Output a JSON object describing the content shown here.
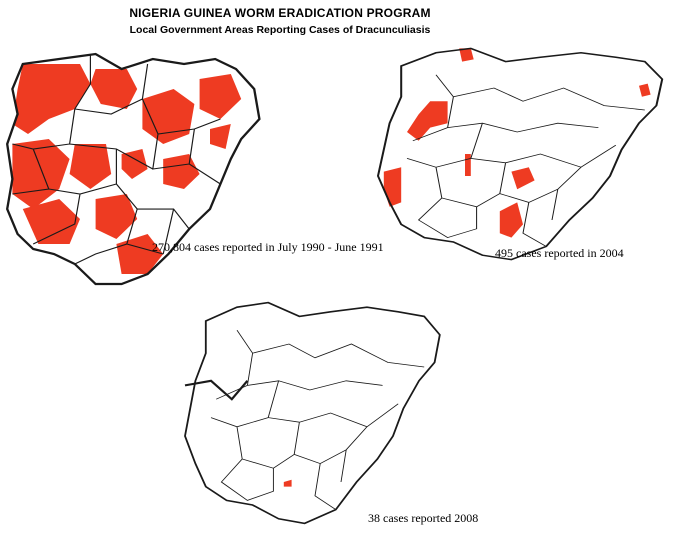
{
  "header": {
    "title": "NIGERIA GUINEA WORM ERADICATION PROGRAM",
    "subtitle": "Local Government Areas Reporting Cases of Dracunculiasis"
  },
  "maps": [
    {
      "caption": "270,804 cases reported in July 1990 - June 1991"
    },
    {
      "caption": "495 cases reported in 2004"
    },
    {
      "caption": "38 cases reported 2008"
    }
  ],
  "colors": {
    "affected": "#ee3b22",
    "boundary": "#1a1a1a",
    "background": "#ffffff"
  }
}
